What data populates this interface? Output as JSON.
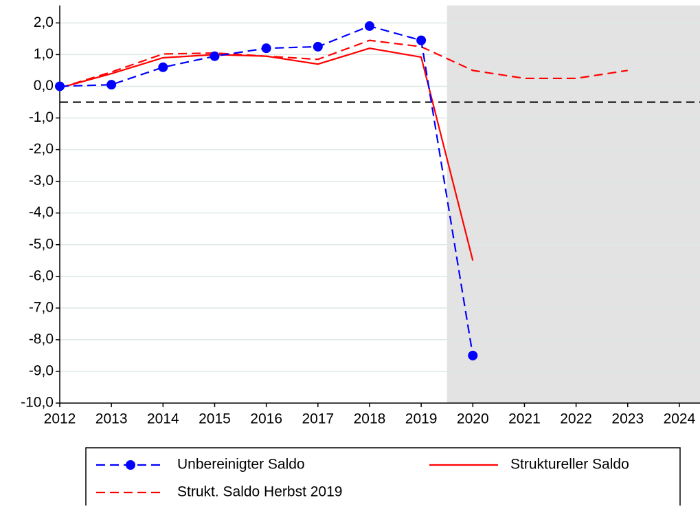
{
  "chart_data": {
    "type": "line",
    "x": [
      2012,
      2013,
      2014,
      2015,
      2016,
      2017,
      2018,
      2019,
      2020,
      2021,
      2022,
      2023
    ],
    "series": [
      {
        "name": "Unbereinigter Saldo",
        "color": "#0000ff",
        "dashed": true,
        "marker": "circle",
        "values": [
          0.0,
          0.05,
          0.6,
          0.95,
          1.2,
          1.25,
          1.9,
          1.45,
          -8.5,
          null,
          null,
          null
        ]
      },
      {
        "name": "Struktureller Saldo",
        "color": "#ff0000",
        "dashed": false,
        "values": [
          -0.05,
          0.4,
          0.9,
          1.0,
          0.95,
          0.7,
          1.2,
          0.92,
          -5.5,
          null,
          null,
          null
        ]
      },
      {
        "name": "Strukt. Saldo Herbst 2019",
        "color": "#ff0000",
        "dashed": true,
        "values": [
          -0.05,
          0.45,
          1.02,
          1.05,
          0.95,
          0.85,
          1.45,
          1.25,
          0.5,
          0.25,
          0.25,
          0.5
        ]
      }
    ],
    "xlim": [
      2012,
      2024.4
    ],
    "xticks": [
      2012,
      2013,
      2014,
      2015,
      2016,
      2017,
      2018,
      2019,
      2020,
      2021,
      2022,
      2023,
      2024
    ],
    "ylim": [
      -10,
      2.55
    ],
    "yticks": [
      {
        "value": -10,
        "label": "-10,0"
      },
      {
        "value": -9,
        "label": "-9,0"
      },
      {
        "value": -8,
        "label": "-8,0"
      },
      {
        "value": -7,
        "label": "-7,0"
      },
      {
        "value": -6,
        "label": "-6,0"
      },
      {
        "value": -5,
        "label": "-5,0"
      },
      {
        "value": -4,
        "label": "-4,0"
      },
      {
        "value": -3,
        "label": "-3,0"
      },
      {
        "value": -2,
        "label": "-2,0"
      },
      {
        "value": -1,
        "label": "-1,0"
      },
      {
        "value": 0,
        "label": "0,0"
      },
      {
        "value": 1,
        "label": "1,0"
      },
      {
        "value": 2,
        "label": "2,0"
      }
    ],
    "grid": true,
    "reference_line": -0.5,
    "shaded_from": 2019.5,
    "legend": "bottom"
  }
}
